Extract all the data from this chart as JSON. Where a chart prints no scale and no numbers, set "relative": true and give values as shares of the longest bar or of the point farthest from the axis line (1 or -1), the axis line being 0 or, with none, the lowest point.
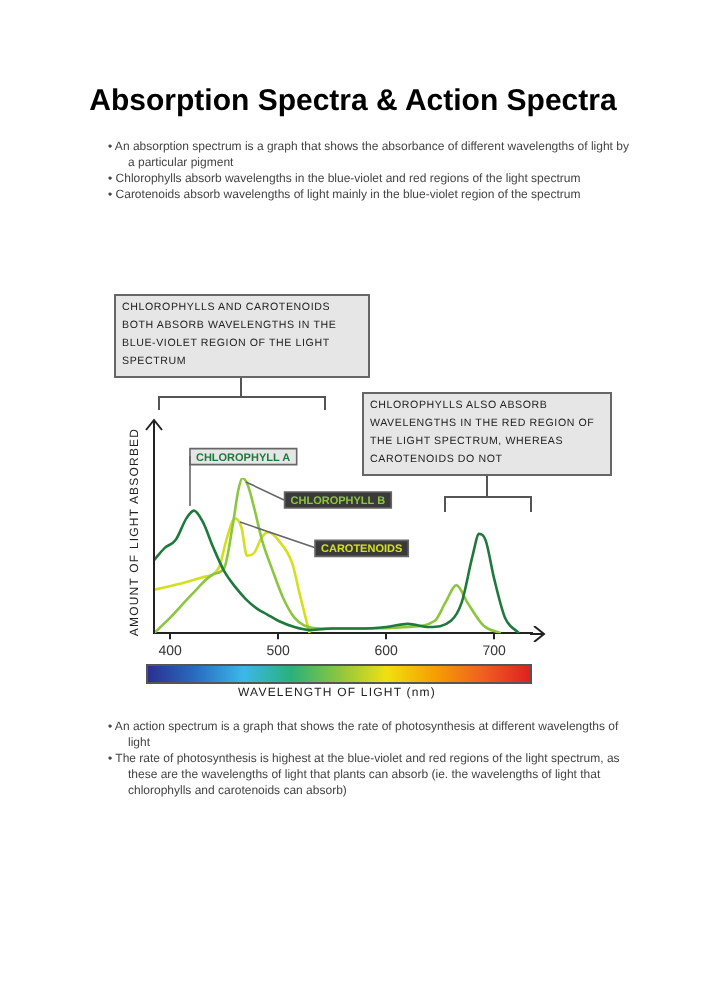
{
  "chart_data": {
    "type": "line",
    "title": "Absorption Spectra & Action Spectra",
    "xlabel": "WAVELENGTH OF LIGHT (nm)",
    "ylabel": "AMOUNT OF LIGHT ABSORBED",
    "relative": true,
    "xlim": [
      385,
      735
    ],
    "xticks": [
      400,
      500,
      600,
      700
    ],
    "grid": false,
    "marker": "none",
    "line_style": "solid",
    "series": [
      {
        "name": "CHLOROPHYLL A",
        "color": "#1e7a3c",
        "x": [
          385,
          395,
          405,
          415,
          422,
          430,
          440,
          450,
          460,
          470,
          480,
          490,
          500,
          515,
          530,
          550,
          575,
          600,
          620,
          640,
          660,
          670,
          680,
          686,
          692,
          700,
          710,
          723
        ],
        "values": [
          0.47,
          0.55,
          0.6,
          0.74,
          0.79,
          0.72,
          0.55,
          0.4,
          0.3,
          0.22,
          0.16,
          0.12,
          0.08,
          0.04,
          0.02,
          0.03,
          0.03,
          0.04,
          0.06,
          0.04,
          0.08,
          0.2,
          0.5,
          0.64,
          0.6,
          0.35,
          0.1,
          0
        ]
      },
      {
        "name": "CHLOROPHYLL B",
        "color": "#8cc63f",
        "x": [
          385,
          400,
          420,
          440,
          450,
          458,
          463,
          467,
          472,
          478,
          485,
          495,
          505,
          515,
          524,
          540,
          580,
          620,
          645,
          655,
          665,
          675,
          690,
          706
        ],
        "values": [
          0,
          0.1,
          0.25,
          0.38,
          0.42,
          0.7,
          0.92,
          1,
          0.95,
          0.8,
          0.6,
          0.4,
          0.22,
          0.1,
          0.05,
          0.03,
          0.03,
          0.04,
          0.08,
          0.2,
          0.31,
          0.2,
          0.05,
          0
        ]
      },
      {
        "name": "CAROTENOIDS",
        "color": "#d4e01c",
        "x": [
          385,
          410,
          430,
          445,
          452,
          460,
          466,
          471,
          478,
          485,
          491,
          500,
          513,
          520,
          529
        ],
        "values": [
          0.28,
          0.32,
          0.36,
          0.42,
          0.6,
          0.74,
          0.68,
          0.5,
          0.52,
          0.62,
          0.65,
          0.6,
          0.45,
          0.25,
          0
        ]
      }
    ],
    "annotations": [
      "• An absorption spectrum is a graph that shows the absorbance of different wavelengths of light by a particular pigment",
      "• Chlorophylls absorb wavelengths in the blue-violet and red regions of the light spectrum",
      "• Carotenoids absorb wavelengths of light mainly in the blue-violet region of the spectrum",
      "CHLOROPHYLLS AND CAROTENOIDS BOTH ABSORB WAVELENGTHS IN THE BLUE-VIOLET REGION OF THE LIGHT SPECTRUM",
      "CHLOROPHYLLS ALSO ABSORB WAVELENGTHS IN THE RED REGION OF THE LIGHT SPECTRUM, WHEREAS CAROTENOIDS DO NOT",
      "• An action spectrum is a graph that shows the rate of photosynthesis at different wavelengths of light",
      "• The rate of photosynthesis is highest at the blue-violet and red regions of the light spectrum, as these are the wavelengths of light that plants can absorb (ie. the wavelengths of light that chlorophylls and carotenoids can absorb)"
    ]
  }
}
